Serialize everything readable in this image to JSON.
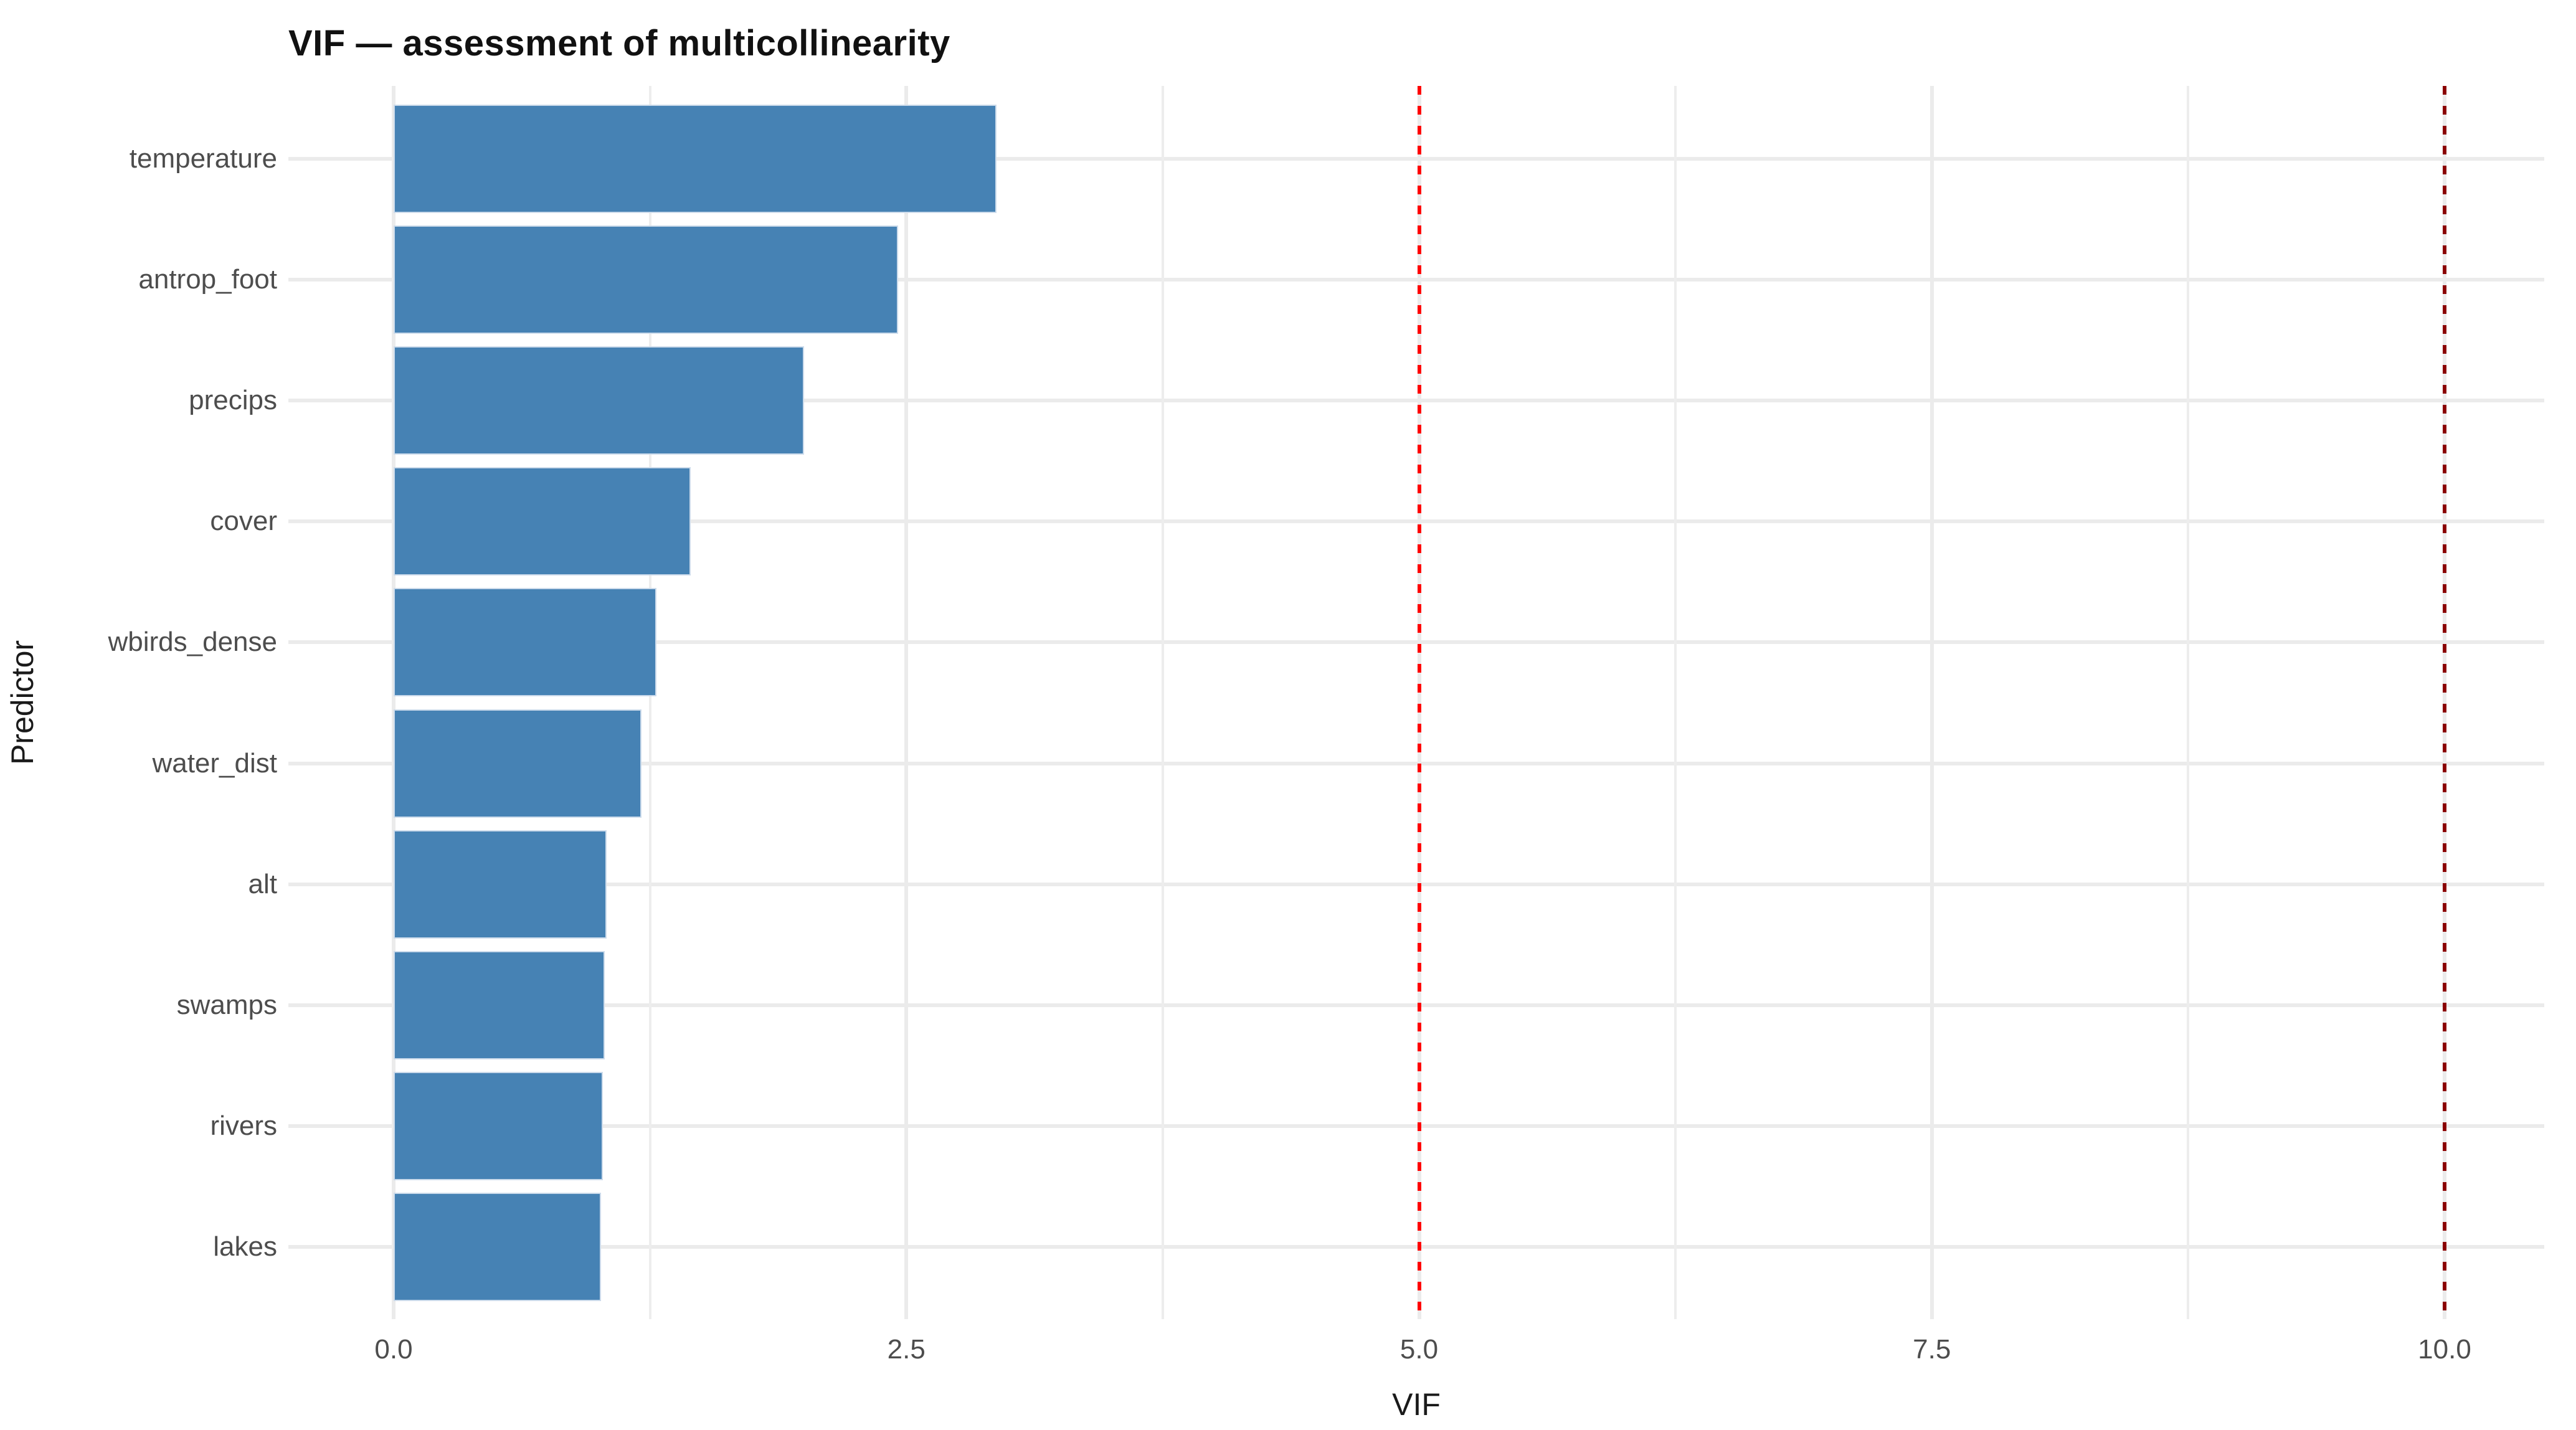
{
  "title": "VIF — assessment of multicollinearity",
  "chart_data": {
    "type": "bar",
    "orientation": "horizontal",
    "title": "VIF — assessment of multicollinearity",
    "xlabel": "VIF",
    "ylabel": "Predictor",
    "categories": [
      "temperature",
      "antrop_foot",
      "precips",
      "cover",
      "wbirds_dense",
      "water_dist",
      "alt",
      "swamps",
      "rivers",
      "lakes"
    ],
    "values": [
      2.94,
      2.46,
      2.0,
      1.45,
      1.28,
      1.21,
      1.04,
      1.03,
      1.02,
      1.01
    ],
    "xlim": [
      0,
      10.5
    ],
    "x_major_ticks": [
      0,
      2.5,
      5,
      7.5,
      10
    ],
    "x_tick_labels": [
      "0.0",
      "2.5",
      "5.0",
      "7.5",
      "10.0"
    ],
    "x_minor_ticks": [
      1.25,
      3.75,
      6.25,
      8.75
    ],
    "grid": "major+minor horizontal-per-category",
    "legend": "none",
    "bar_color": "#4682B4",
    "bar_border_color": "#ccdbeb",
    "background_color": "#ffffff",
    "gridline_color": "#ebebeb",
    "thresholds": [
      {
        "value": 5,
        "color": "#ff0000",
        "style": "dashed",
        "label": ""
      },
      {
        "value": 10,
        "color": "#8b0000",
        "style": "dashed",
        "label": ""
      }
    ]
  }
}
